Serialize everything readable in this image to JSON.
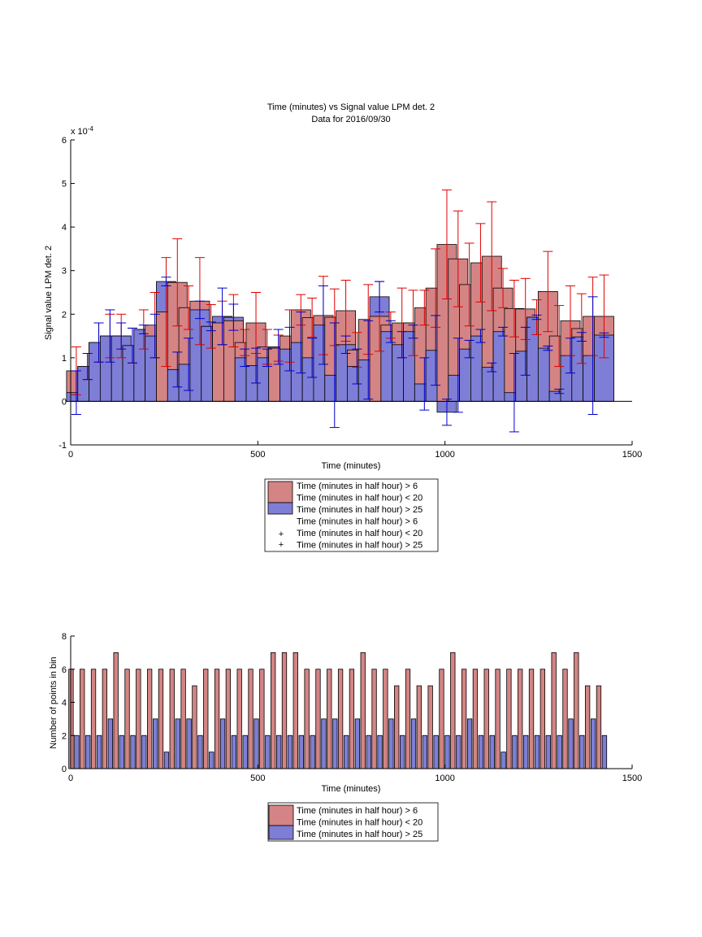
{
  "chart_data": [
    {
      "type": "bar",
      "title": "Time (minutes) vs Signal value LPM det. 2",
      "subtitle": "Data for 2016/09/30",
      "xlabel": "Time (minutes)",
      "ylabel": "Signal value LPM det. 2",
      "xlim": [
        0,
        1500
      ],
      "ylim": [
        -1,
        6
      ],
      "y_exponent_label": "x 10",
      "y_exponent_power": "-4",
      "xticks": [
        0,
        500,
        1000,
        1500
      ],
      "yticks": [
        -1,
        0,
        1,
        2,
        3,
        4,
        5,
        6
      ],
      "grid": false,
      "legend_position": "bottom",
      "legend": [
        "Time (minutes in half hour) > 6",
        "Time (minutes in half hour) < 20",
        "Time (minutes in half hour) > 25",
        "Time (minutes in half hour) > 6",
        "Time (minutes in half hour) < 20",
        "Time (minutes in half hour) > 25"
      ],
      "colors": {
        "red_bar": "#d48484",
        "blue_bar": "#7e7ed6",
        "red_err": "#e00000",
        "blue_err": "#0000d0"
      },
      "x": [
        15,
        45,
        75,
        105,
        135,
        165,
        195,
        225,
        255,
        285,
        315,
        345,
        375,
        405,
        435,
        465,
        495,
        525,
        555,
        585,
        615,
        645,
        675,
        705,
        735,
        765,
        795,
        825,
        855,
        885,
        915,
        945,
        975,
        1005,
        1035,
        1065,
        1095,
        1125,
        1155,
        1185,
        1215,
        1245,
        1275,
        1305,
        1335,
        1365,
        1395,
        1425
      ],
      "series": [
        {
          "name": "Time (minutes in half hour) > 6",
          "values": [
            0.7,
            0.8,
            1.35,
            1.5,
            1.5,
            1.28,
            1.65,
            1.75,
            2.05,
            2.73,
            2.15,
            2.3,
            1.72,
            1.8,
            1.85,
            1.35,
            1.8,
            1.25,
            1.22,
            1.5,
            2.1,
            1.92,
            1.97,
            1.93,
            2.08,
            1.18,
            1.88,
            1.95,
            1.75,
            1.8,
            1.8,
            2.15,
            2.6,
            3.6,
            3.27,
            2.68,
            3.18,
            3.33,
            2.6,
            2.13,
            2.12,
            1.93,
            2.52,
            1.5,
            1.85,
            1.67,
            1.95,
            1.95
          ],
          "err": [
            0.55,
            0.3,
            0.45,
            0.5,
            0.5,
            0.4,
            0.45,
            0.75,
            1.25,
            1.0,
            0.5,
            1.0,
            0.5,
            0.5,
            0.6,
            0.3,
            0.7,
            0.4,
            0.3,
            0.6,
            0.35,
            0.45,
            0.9,
            0.65,
            0.7,
            0.4,
            0.8,
            0.8,
            0.3,
            0.8,
            0.75,
            0.4,
            0.9,
            1.25,
            1.1,
            0.95,
            0.9,
            1.25,
            0.45,
            0.65,
            0.7,
            0.4,
            0.92,
            0.7,
            0.8,
            0.8,
            0.9,
            0.95
          ]
        },
        {
          "name": "Time (minutes in half hour) > 25",
          "values": [
            0.2,
            0.8,
            1.35,
            1.5,
            1.5,
            1.28,
            1.65,
            1.5,
            2.75,
            0.73,
            0.85,
            2.1,
            1.72,
            1.95,
            1.93,
            1.0,
            0.82,
            1.0,
            1.25,
            1.2,
            1.35,
            1.0,
            1.75,
            0.6,
            1.3,
            0.8,
            0.95,
            2.4,
            1.6,
            1.3,
            1.6,
            0.4,
            1.17,
            -0.25,
            0.6,
            1.2,
            1.5,
            0.78,
            1.6,
            0.2,
            1.15,
            1.93,
            1.22,
            0.23,
            1.05,
            1.48,
            1.05,
            1.52
          ],
          "err": [
            0.5,
            0.3,
            0.45,
            0.6,
            0.3,
            0.4,
            0.1,
            0.5,
            0.1,
            0.4,
            0.6,
            0.2,
            0.1,
            0.65,
            0.3,
            0.2,
            0.4,
            0.2,
            0.4,
            0.5,
            0.7,
            0.45,
            0.9,
            1.2,
            0.2,
            0.4,
            0.9,
            0.35,
            0.25,
            0.3,
            0.15,
            0.6,
            0.8,
            0.3,
            0.85,
            0.2,
            0.15,
            0.1,
            0.1,
            0.9,
            0.55,
            0.05,
            0.05,
            0.05,
            0.4,
            0.1,
            1.35,
            0.05
          ]
        }
      ]
    },
    {
      "type": "bar",
      "xlabel": "Time (minutes)",
      "ylabel": "Number of points in bin",
      "xlim": [
        0,
        1500
      ],
      "ylim": [
        0,
        8
      ],
      "xticks": [
        0,
        500,
        1000,
        1500
      ],
      "yticks": [
        0,
        2,
        4,
        6,
        8
      ],
      "grid": false,
      "legend_position": "bottom",
      "legend": [
        "Time (minutes in half hour) > 6",
        "Time (minutes in half hour) < 20",
        "Time (minutes in half hour) > 25"
      ],
      "x": [
        15,
        45,
        75,
        105,
        135,
        165,
        195,
        225,
        255,
        285,
        315,
        345,
        375,
        405,
        435,
        465,
        495,
        525,
        555,
        585,
        615,
        645,
        675,
        705,
        735,
        765,
        795,
        825,
        855,
        885,
        915,
        945,
        975,
        1005,
        1035,
        1065,
        1095,
        1125,
        1155,
        1185,
        1215,
        1245,
        1275,
        1305,
        1335,
        1365,
        1395,
        1425
      ],
      "series": [
        {
          "name": "Time (minutes in half hour) > 6",
          "values": [
            6,
            6,
            6,
            6,
            7,
            6,
            6,
            6,
            6,
            6,
            6,
            5,
            6,
            6,
            6,
            6,
            6,
            6,
            7,
            7,
            7,
            6,
            6,
            6,
            6,
            6,
            7,
            6,
            6,
            5,
            6,
            5,
            5,
            6,
            7,
            6,
            6,
            6,
            6,
            6,
            6,
            6,
            6,
            7,
            6,
            7,
            5,
            5
          ]
        },
        {
          "name": "Time (minutes in half hour) > 25",
          "values": [
            2,
            2,
            2,
            3,
            2,
            2,
            2,
            3,
            1,
            3,
            3,
            2,
            1,
            3,
            2,
            2,
            3,
            2,
            2,
            2,
            2,
            2,
            3,
            3,
            2,
            3,
            2,
            2,
            3,
            2,
            3,
            2,
            2,
            2,
            2,
            3,
            2,
            2,
            1,
            2,
            2,
            2,
            2,
            2,
            3,
            2,
            3,
            2
          ]
        }
      ]
    }
  ]
}
